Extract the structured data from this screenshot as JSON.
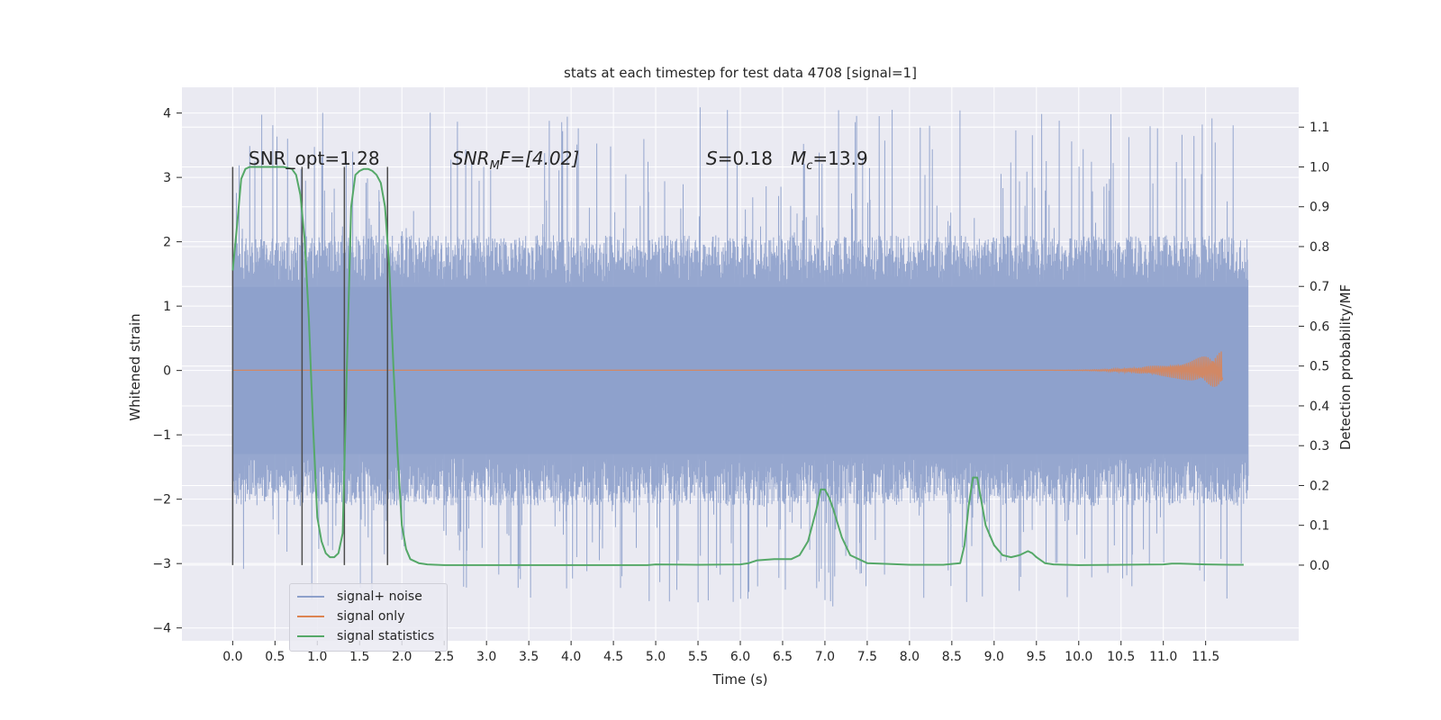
{
  "chart_data": {
    "type": "line",
    "title": "stats at each timestep for test data 4708 [signal=1]",
    "xlabel": "Time (s)",
    "ylabel": "Whitened strain",
    "ylabel_right": "Detection probability/MF",
    "xlim": [
      -0.6,
      12.6
    ],
    "ylim": [
      -4.2,
      4.4
    ],
    "ylim_right": [
      -0.19,
      1.2
    ],
    "x_ticks": [
      "0.0",
      "0.5",
      "1.0",
      "1.5",
      "2.0",
      "2.5",
      "3.0",
      "3.5",
      "4.0",
      "4.5",
      "5.0",
      "5.5",
      "6.0",
      "6.5",
      "7.0",
      "7.5",
      "8.0",
      "8.5",
      "9.0",
      "9.5",
      "10.0",
      "10.5",
      "11.0",
      "11.5"
    ],
    "y_ticks": [
      "4",
      "3",
      "2",
      "1",
      "0",
      "−1",
      "−2",
      "−3",
      "−4"
    ],
    "y_ticks_right": [
      "1.1",
      "1.0",
      "0.9",
      "0.8",
      "0.7",
      "0.6",
      "0.5",
      "0.4",
      "0.3",
      "0.2",
      "0.1",
      "0.0"
    ],
    "grid": true,
    "legend_position": "lower-left",
    "annotations": {
      "snr_opt": "SNR_opt=1.28",
      "snr_mf_sym": "SNR",
      "snr_mf_sub": "M",
      "snr_mf_rest": "F=[4.02]",
      "s_sym": "S",
      "s_rest": "=0.18",
      "mc_sym": "M",
      "mc_sub": "c",
      "mc_rest": "=13.9"
    },
    "series": [
      {
        "name": "signal+ noise",
        "color": "#8da0cb",
        "kind": "noise",
        "time_range": [
          0,
          12
        ],
        "typical_envelope": [
          -2.0,
          2.0
        ],
        "peak_range": [
          -3.7,
          4.1
        ]
      },
      {
        "name": "signal only",
        "color": "#dd8452",
        "kind": "chirp",
        "time_range": [
          0,
          11.7
        ],
        "peak_amplitude": 0.3
      },
      {
        "name": "signal statistics",
        "color": "#55a868",
        "kind": "line",
        "x": [
          0.0,
          0.05,
          0.1,
          0.15,
          0.2,
          0.3,
          0.4,
          0.5,
          0.6,
          0.7,
          0.75,
          0.8,
          0.85,
          0.9,
          0.95,
          1.0,
          1.05,
          1.1,
          1.15,
          1.2,
          1.25,
          1.3,
          1.35,
          1.4,
          1.45,
          1.5,
          1.55,
          1.6,
          1.65,
          1.7,
          1.75,
          1.8,
          1.85,
          1.9,
          1.95,
          2.0,
          2.05,
          2.1,
          2.2,
          2.3,
          2.5,
          3.0,
          4.0,
          4.5,
          4.9,
          5.0,
          5.5,
          6.0,
          6.1,
          6.2,
          6.4,
          6.6,
          6.7,
          6.8,
          6.9,
          6.95,
          7.0,
          7.05,
          7.1,
          7.2,
          7.3,
          7.5,
          8.0,
          8.4,
          8.6,
          8.65,
          8.7,
          8.75,
          8.8,
          8.85,
          8.9,
          9.0,
          9.1,
          9.2,
          9.3,
          9.4,
          9.45,
          9.5,
          9.6,
          9.7,
          10.0,
          10.5,
          11.0,
          11.1,
          11.2,
          11.5,
          11.8,
          11.95
        ],
        "y": [
          0.74,
          0.85,
          0.97,
          0.995,
          1.0,
          1.0,
          1.0,
          1.0,
          1.0,
          0.995,
          0.98,
          0.93,
          0.82,
          0.62,
          0.35,
          0.12,
          0.06,
          0.03,
          0.02,
          0.02,
          0.03,
          0.08,
          0.5,
          0.9,
          0.98,
          0.99,
          0.995,
          0.995,
          0.99,
          0.98,
          0.96,
          0.9,
          0.75,
          0.5,
          0.28,
          0.1,
          0.04,
          0.015,
          0.005,
          0.002,
          0.0,
          0.0,
          0.0,
          0.0,
          0.0,
          0.002,
          0.001,
          0.002,
          0.005,
          0.012,
          0.015,
          0.015,
          0.025,
          0.06,
          0.14,
          0.19,
          0.19,
          0.17,
          0.14,
          0.07,
          0.025,
          0.005,
          0.001,
          0.001,
          0.005,
          0.05,
          0.15,
          0.22,
          0.22,
          0.16,
          0.1,
          0.05,
          0.025,
          0.02,
          0.025,
          0.035,
          0.03,
          0.02,
          0.005,
          0.002,
          0.0,
          0.001,
          0.002,
          0.004,
          0.004,
          0.002,
          0.001,
          0.001
        ]
      }
    ],
    "markers": [
      0.0,
      0.82,
      1.32,
      1.83
    ]
  }
}
